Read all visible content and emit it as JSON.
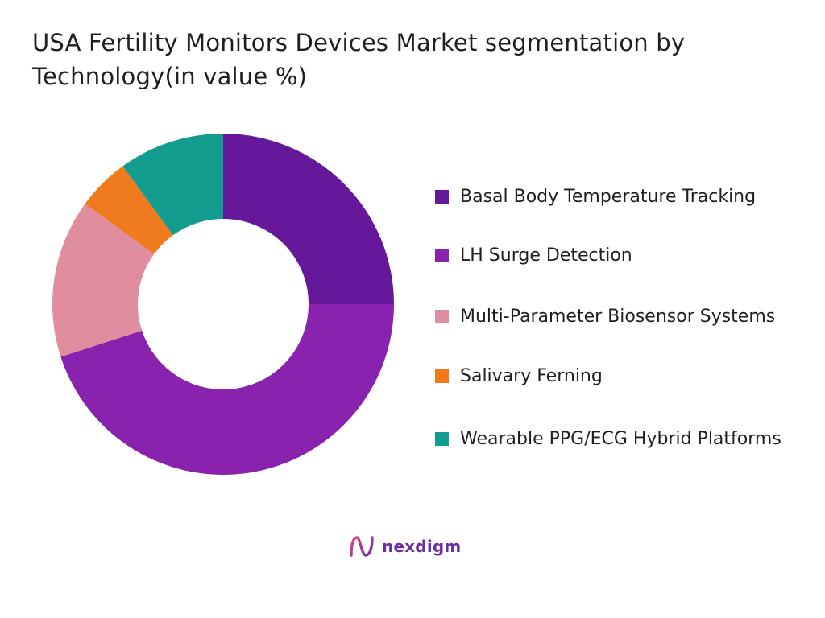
{
  "chart_data": {
    "type": "pie",
    "title": "USA Fertility Monitors Devices Market segmentation by Technology(in value %)",
    "categories": [
      "Basal Body Temperature Tracking",
      "LH Surge Detection",
      "Multi-Parameter Biosensor Systems",
      "Salivary Ferning",
      "Wearable PPG/ECG Hybrid Platforms"
    ],
    "values": [
      25,
      45,
      15,
      5,
      10
    ],
    "colors": [
      "#65199a",
      "#8a22b0",
      "#e08da0",
      "#f07b1e",
      "#129c8e"
    ],
    "legend_position": "right",
    "donut": true
  },
  "legend": {
    "items": [
      {
        "label": "Basal Body Temperature Tracking",
        "color": "#65199a"
      },
      {
        "label": "LH Surge Detection",
        "color": "#8a22b0"
      },
      {
        "label": "Multi-Parameter Biosensor Systems",
        "color": "#e08da0"
      },
      {
        "label": "Salivary Ferning",
        "color": "#f07b1e"
      },
      {
        "label": "Wearable PPG/ECG Hybrid Platforms",
        "color": "#129c8e"
      }
    ]
  },
  "brand": {
    "name": "nexdigm",
    "logo_icon": "nexdigm-logo-icon",
    "color": "#6b2fa3"
  }
}
